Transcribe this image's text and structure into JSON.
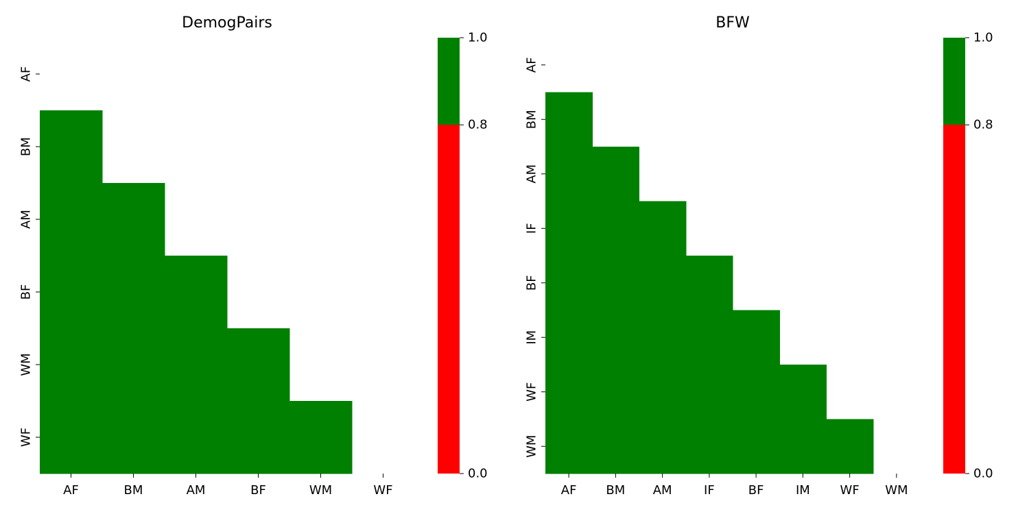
{
  "colors": {
    "pass": "#008000",
    "fail": "#ff0000"
  },
  "chart_data": [
    {
      "type": "heatmap",
      "title": "DemogPairs",
      "x_labels": [
        "AF",
        "BM",
        "AM",
        "BF",
        "WM",
        "WF"
      ],
      "y_labels": [
        "AF",
        "BM",
        "AM",
        "BF",
        "WM",
        "WF"
      ],
      "mask": "upper-triangle-including-diagonal",
      "cell_status": "all visible cells above threshold (green)",
      "colorbar": {
        "min": 0.0,
        "max": 1.0,
        "threshold": 0.8,
        "ticks": [
          "0.0",
          "0.8",
          "1.0"
        ],
        "segments": [
          {
            "from": 0.0,
            "to": 0.8,
            "color": "#ff0000"
          },
          {
            "from": 0.8,
            "to": 1.0,
            "color": "#008000"
          }
        ]
      },
      "grid": false
    },
    {
      "type": "heatmap",
      "title": "BFW",
      "x_labels": [
        "AF",
        "BM",
        "AM",
        "IF",
        "BF",
        "IM",
        "WF",
        "WM"
      ],
      "y_labels": [
        "AF",
        "BM",
        "AM",
        "IF",
        "BF",
        "IM",
        "WF",
        "WM"
      ],
      "mask": "upper-triangle-including-diagonal",
      "cell_status": "all visible cells above threshold (green)",
      "colorbar": {
        "min": 0.0,
        "max": 1.0,
        "threshold": 0.8,
        "ticks": [
          "0.0",
          "0.8",
          "1.0"
        ],
        "segments": [
          {
            "from": 0.0,
            "to": 0.8,
            "color": "#ff0000"
          },
          {
            "from": 0.8,
            "to": 1.0,
            "color": "#008000"
          }
        ]
      },
      "grid": false
    }
  ]
}
